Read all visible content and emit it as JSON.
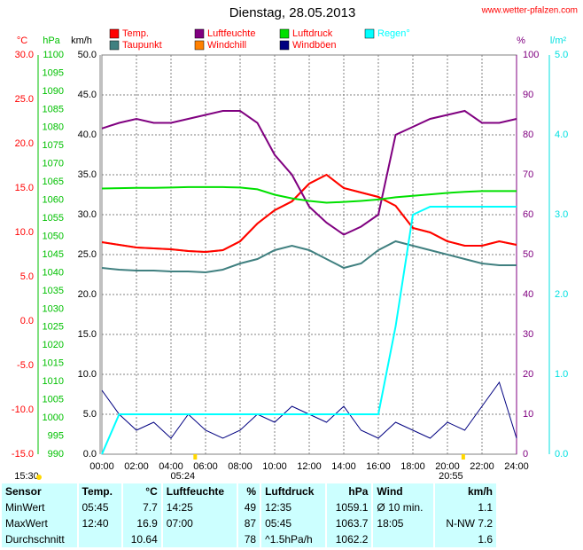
{
  "chart_data": {
    "type": "line",
    "title": "Dienstag, 28.05.2013",
    "source": "www.wetter-pfalzen.com",
    "x": [
      0,
      1,
      2,
      3,
      4,
      5,
      6,
      7,
      8,
      9,
      10,
      11,
      12,
      13,
      14,
      15,
      16,
      17,
      18,
      19,
      20,
      21,
      22,
      23,
      24
    ],
    "xlim": [
      0,
      24
    ],
    "xticks": [
      {
        "value": 0,
        "label": "00:00"
      },
      {
        "value": 2,
        "label": "02:00"
      },
      {
        "value": 4,
        "label": "04:00"
      },
      {
        "value": 6,
        "label": "06:00"
      },
      {
        "value": 8,
        "label": "08:00"
      },
      {
        "value": 10,
        "label": "10:00"
      },
      {
        "value": 12,
        "label": "12:00"
      },
      {
        "value": 14,
        "label": "14:00"
      },
      {
        "value": 16,
        "label": "16:00"
      },
      {
        "value": 18,
        "label": "18:00"
      },
      {
        "value": 20,
        "label": "20:00"
      },
      {
        "value": 22,
        "label": "22:00"
      },
      {
        "value": 24,
        "label": "24:00"
      }
    ],
    "grid": true,
    "axes": [
      {
        "id": "c",
        "unit": "°C",
        "color": "#ff0000",
        "lim": [
          -15,
          30
        ],
        "ticks": [
          {
            "value": -15,
            "label": "-15.0"
          },
          {
            "value": -10,
            "label": "-10.0"
          },
          {
            "value": -5,
            "label": "-5.0"
          },
          {
            "value": 0,
            "label": "0.0"
          },
          {
            "value": 5,
            "label": "5.0"
          },
          {
            "value": 10,
            "label": "10.0"
          },
          {
            "value": 15,
            "label": "15.0"
          },
          {
            "value": 20,
            "label": "20.0"
          },
          {
            "value": 25,
            "label": "25.0"
          },
          {
            "value": 30,
            "label": "30.0"
          }
        ]
      },
      {
        "id": "hpa",
        "unit": "hPa",
        "color": "#00c000",
        "lim": [
          990,
          1100
        ],
        "ticks": [
          990,
          995,
          1000,
          1005,
          1010,
          1015,
          1020,
          1025,
          1030,
          1035,
          1040,
          1045,
          1050,
          1055,
          1060,
          1065,
          1070,
          1075,
          1080,
          1085,
          1090,
          1095,
          1100
        ]
      },
      {
        "id": "kmh",
        "unit": "km/h",
        "color": "#000000",
        "lim": [
          0,
          50
        ],
        "ticks": [
          {
            "value": 0,
            "label": "0.0"
          },
          {
            "value": 5,
            "label": "5.0"
          },
          {
            "value": 10,
            "label": "10.0"
          },
          {
            "value": 15,
            "label": "15.0"
          },
          {
            "value": 20,
            "label": "20.0"
          },
          {
            "value": 25,
            "label": "25.0"
          },
          {
            "value": 30,
            "label": "30.0"
          },
          {
            "value": 35,
            "label": "35.0"
          },
          {
            "value": 40,
            "label": "40.0"
          },
          {
            "value": 45,
            "label": "45.0"
          },
          {
            "value": 50,
            "label": "50.0"
          }
        ]
      },
      {
        "id": "pct",
        "unit": "%",
        "color": "#800080",
        "lim": [
          0,
          100
        ],
        "ticks": [
          0,
          10,
          20,
          30,
          40,
          50,
          60,
          70,
          80,
          90,
          100
        ]
      },
      {
        "id": "rain",
        "unit": "l/m²",
        "color": "#00e0e0",
        "lim": [
          0,
          5
        ],
        "ticks": [
          {
            "value": 0,
            "label": "0.0"
          },
          {
            "value": 1,
            "label": "1.0"
          },
          {
            "value": 2,
            "label": "2.0"
          },
          {
            "value": 3,
            "label": "3.0"
          },
          {
            "value": 4,
            "label": "4.0"
          },
          {
            "value": 5,
            "label": "5.0"
          }
        ]
      }
    ],
    "series": [
      {
        "name": "Windchill",
        "color": "#ff8000",
        "axis": "c",
        "values": [
          8.9,
          8.6,
          8.3,
          8.2,
          8.1,
          7.9,
          7.8,
          8.0,
          9.0,
          11.0,
          12.5,
          13.5,
          15.5,
          16.5,
          15.0,
          14.5,
          14.0,
          13.0,
          10.5,
          10.0,
          9.0,
          8.5,
          8.5,
          9.0,
          8.6
        ]
      },
      {
        "name": "Temp.",
        "color": "#ff0000",
        "axis": "c",
        "values": [
          8.9,
          8.6,
          8.3,
          8.2,
          8.1,
          7.9,
          7.8,
          8.0,
          9.0,
          11.0,
          12.5,
          13.5,
          15.5,
          16.5,
          15.0,
          14.5,
          14.0,
          13.0,
          10.5,
          10.0,
          9.0,
          8.5,
          8.5,
          9.0,
          8.6
        ]
      },
      {
        "name": "Taupunkt",
        "color": "#408080",
        "axis": "c",
        "values": [
          6.0,
          5.8,
          5.7,
          5.7,
          5.6,
          5.6,
          5.5,
          5.8,
          6.5,
          7.0,
          8.0,
          8.5,
          8.0,
          7.0,
          6.0,
          6.5,
          8.0,
          9.0,
          8.5,
          8.0,
          7.5,
          7.0,
          6.5,
          6.3,
          6.3
        ]
      },
      {
        "name": "Luftfeuchte",
        "color": "#800080",
        "axis": "pct",
        "values": [
          81.6,
          83,
          84,
          83,
          83,
          84,
          85,
          86,
          86,
          83,
          75,
          70,
          62,
          58,
          55,
          57,
          60,
          80,
          82,
          84,
          85,
          86,
          83,
          83,
          84
        ]
      },
      {
        "name": "Luftdruck",
        "color": "#00e000",
        "axis": "hpa",
        "values": [
          1063.2,
          1063.3,
          1063.4,
          1063.4,
          1063.5,
          1063.6,
          1063.6,
          1063.6,
          1063.5,
          1063.0,
          1061.5,
          1060.5,
          1059.8,
          1059.3,
          1059.5,
          1059.8,
          1060.2,
          1060.8,
          1061.2,
          1061.6,
          1062.0,
          1062.3,
          1062.5,
          1062.5,
          1062.5
        ]
      },
      {
        "name": "Windböen",
        "color": "#000080",
        "axis": "kmh",
        "values": [
          8,
          5,
          3,
          4,
          2,
          5,
          3,
          2,
          3,
          5,
          4,
          6,
          5,
          4,
          6,
          3,
          2,
          4,
          3,
          2,
          4,
          3,
          6,
          9,
          2
        ]
      },
      {
        "name": "Regen°",
        "color": "#00ffff",
        "axis": "rain",
        "values": [
          0,
          0.5,
          0.5,
          0.5,
          0.5,
          0.5,
          0.5,
          0.5,
          0.5,
          0.5,
          0.5,
          0.5,
          0.5,
          0.5,
          0.5,
          0.5,
          0.5,
          1.6,
          3.0,
          3.1,
          3.1,
          3.1,
          3.1,
          3.1,
          3.1
        ]
      }
    ],
    "legend_order": [
      1,
      3,
      4,
      6,
      2,
      0,
      5
    ],
    "moon": "15:30",
    "annotations": [
      {
        "x": 5.4,
        "label": "05:24"
      },
      {
        "x": 20.917,
        "label": "20:55"
      }
    ]
  },
  "table": {
    "header": [
      "Sensor",
      "Temp.",
      "°C",
      "Luftfeuchte",
      "%",
      "Luftdruck",
      "hPa",
      "Wind",
      "km/h"
    ],
    "rows": [
      [
        "MinWert",
        "05:45",
        "7.7",
        "14:25",
        "49",
        "12:35",
        "1059.1",
        "Ø 10 min.",
        "1.1"
      ],
      [
        "MaxWert",
        "12:40",
        "16.9",
        "07:00",
        "87",
        "05:45",
        "1063.7",
        "18:05",
        "N-NW 7.2"
      ],
      [
        "Durchschnitt",
        null,
        "10.64",
        null,
        "78",
        "^1.5hPa/h",
        "1062.2",
        null,
        "1.6"
      ]
    ]
  }
}
